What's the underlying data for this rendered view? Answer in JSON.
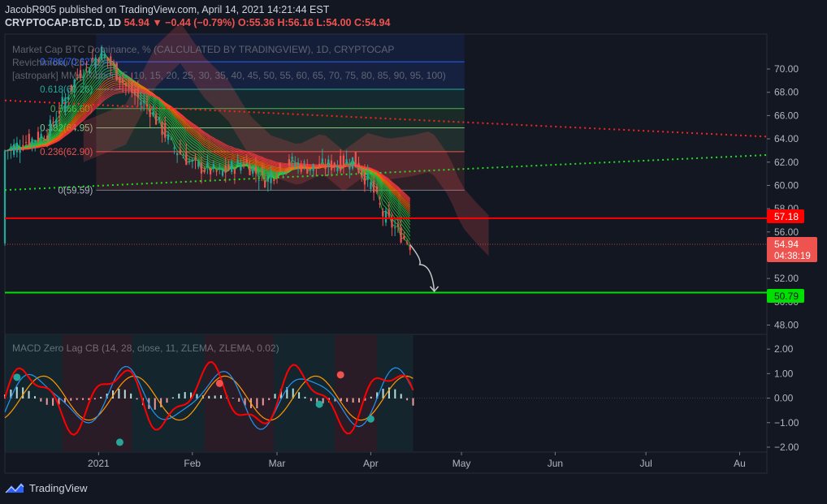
{
  "header": {
    "line1": "JacobR905 published on TradingView.com, April 14, 2021 14:21:44 EST",
    "symbol": "CRYPTOCAP:BTC.D, 1D",
    "last": "54.94",
    "change": "▼ −0.44 (−0.79%)",
    "ohlc": "O:55.36 H:56.16 L:54.00 C:54.94"
  },
  "indicators": {
    "line1": "Market Cap BTC Dominance, % (CALCULATED BY TRADINGVIEW), 1D, CRYPTOCAP",
    "line2": "Revichimoku (26, 52)",
    "line3": "[astropark] MMA Ribbon (5, 10, 15, 20, 25, 30, 35, 40, 45, 50, 55, 60, 65, 70, 75, 80, 85, 90, 95, 100)",
    "macd": "MACD Zero Lag CB (14, 28, close, 11, ZLEMA, ZLEMA, 0.02)"
  },
  "fib_levels": [
    {
      "label": "0.786(70.62)",
      "value": 70.62,
      "color": "#2962ff"
    },
    {
      "label": "0.618(68.26)",
      "value": 68.26,
      "color": "#26a69a"
    },
    {
      "label": "0.5(66.60)",
      "value": 66.6,
      "color": "#4caf50"
    },
    {
      "label": "0.382(64.95)",
      "value": 64.95,
      "color": "#81c784"
    },
    {
      "label": "0.236(62.90)",
      "value": 62.9,
      "color": "#ef5350"
    },
    {
      "label": "0(59.59)",
      "value": 59.59,
      "color": "#787b86"
    }
  ],
  "price_labels": {
    "resistance": "57.18",
    "current": "54.94",
    "countdown": "04:38:19",
    "support": "50.79"
  },
  "colors": {
    "background": "#131722",
    "up": "#26a69a",
    "down": "#ef5350",
    "resistance": "#ff0000",
    "support": "#00ff00"
  },
  "chart_data": {
    "type": "candlestick",
    "y_axis_ticks": [
      "70.00",
      "68.00",
      "66.00",
      "64.00",
      "62.00",
      "60.00",
      "58.00",
      "56.00",
      "52.00",
      "50.00",
      "48.00"
    ],
    "y_range": [
      47.2,
      73.0
    ],
    "macd_ticks": [
      "2.00",
      "1.00",
      "0.00",
      "−1.00",
      "−2.00"
    ],
    "macd_range": [
      -2.2,
      2.6
    ],
    "x_axis_labels": [
      "2021",
      "Feb",
      "Mar",
      "Apr",
      "May",
      "Jun",
      "Jul",
      "Au"
    ],
    "horizontal_levels": {
      "resistance": 57.18,
      "support": 50.79,
      "current": 54.94
    },
    "trendlines": {
      "red_dotted": {
        "from": [
          "2020-12-01",
          67.3
        ],
        "to": [
          "2021-08-01",
          64.4
        ]
      },
      "green_dotted": {
        "from": [
          "2020-12-01",
          59.6
        ],
        "to": [
          "2021-08-01",
          62.4
        ]
      }
    },
    "closes": [
      {
        "date": "2020-12-01",
        "value": 63.0
      },
      {
        "date": "2020-12-15",
        "value": 64.5
      },
      {
        "date": "2020-12-25",
        "value": 69.5
      },
      {
        "date": "2021-01-02",
        "value": 71.5
      },
      {
        "date": "2021-01-10",
        "value": 68.5
      },
      {
        "date": "2021-01-18",
        "value": 66.5
      },
      {
        "date": "2021-01-25",
        "value": 63.5
      },
      {
        "date": "2021-02-01",
        "value": 61.8
      },
      {
        "date": "2021-02-10",
        "value": 61.0
      },
      {
        "date": "2021-02-18",
        "value": 62.0
      },
      {
        "date": "2021-02-25",
        "value": 60.5
      },
      {
        "date": "2021-03-05",
        "value": 62.0
      },
      {
        "date": "2021-03-12",
        "value": 61.5
      },
      {
        "date": "2021-03-20",
        "value": 61.8
      },
      {
        "date": "2021-03-26",
        "value": 62.2
      },
      {
        "date": "2021-04-01",
        "value": 60.0
      },
      {
        "date": "2021-04-05",
        "value": 57.5
      },
      {
        "date": "2021-04-10",
        "value": 56.0
      },
      {
        "date": "2021-04-14",
        "value": 54.94
      }
    ],
    "projection": [
      {
        "date": "2021-04-14",
        "value": 54.9
      },
      {
        "date": "2021-04-18",
        "value": 53.2
      },
      {
        "date": "2021-04-22",
        "value": 50.9
      }
    ]
  }
}
